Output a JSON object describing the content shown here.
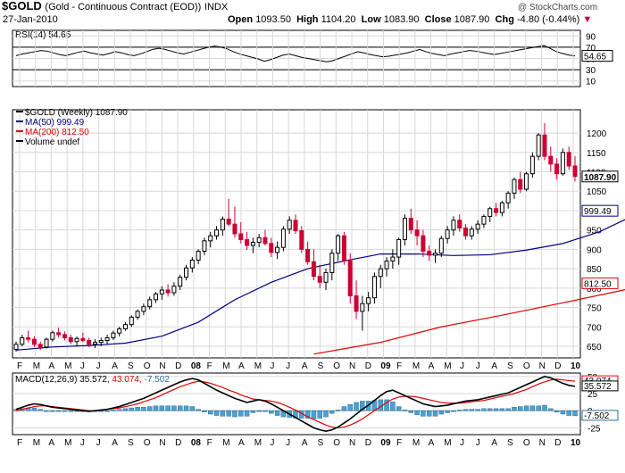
{
  "header": {
    "symbol": "$GOLD",
    "name": "(Gold - Continuous Contract (EOD))",
    "exchange": "INDX",
    "date": "27-Jan-2010",
    "open_label": "Open",
    "open": "1093.50",
    "high_label": "High",
    "high": "1104.20",
    "low_label": "Low",
    "low": "1083.90",
    "close_label": "Close",
    "close": "1087.90",
    "chg_label": "Chg",
    "chg": "-4.80 (-0.44%)",
    "watermark": "@ StockCharts.com"
  },
  "colors": {
    "up": "#000000",
    "down": "#cc0033",
    "ma50": "#000080",
    "ma200": "#e00000",
    "rsi_fill": "#4a7a3a",
    "hist": "#4aa0d0",
    "signal": "#e00000",
    "grid": "#d8d8d8"
  },
  "chart_data": [
    {
      "type": "line",
      "panel": "rsi",
      "legend": "RSI(14) 54.65",
      "current": "54.65",
      "ylim": [
        0,
        100
      ],
      "ticks": [
        10,
        30,
        50,
        70,
        90
      ],
      "overbought": 70,
      "oversold": 30,
      "values": [
        55,
        58,
        60,
        62,
        64,
        63,
        60,
        57,
        55,
        58,
        61,
        63,
        60,
        58,
        56,
        59,
        62,
        60,
        57,
        55,
        58,
        62,
        66,
        68,
        66,
        63,
        60,
        58,
        61,
        64,
        67,
        70,
        72,
        70,
        67,
        62,
        58,
        55,
        52,
        49,
        45,
        48,
        52,
        56,
        58,
        55,
        52,
        50,
        48,
        46,
        44,
        46,
        50,
        54,
        58,
        62,
        60,
        57,
        55,
        53,
        54,
        56,
        58,
        60,
        63,
        66,
        62,
        59,
        57,
        55,
        58,
        60,
        62,
        64,
        63,
        61,
        59,
        57,
        59,
        61,
        63,
        65,
        67,
        69,
        71,
        73,
        68,
        62,
        59,
        56,
        54.65
      ]
    },
    {
      "type": "candlestick",
      "panel": "price",
      "legend": "$GOLD (Weekly) 1087.90",
      "ma50_label": "MA(50) 999.49",
      "ma200_label": "MA(200) 812.50",
      "volume_label": "Volume undef",
      "ma50_value": "999.49",
      "ma200_value": "812.50",
      "close_value": "1087.90",
      "ylim": [
        620,
        1260
      ],
      "ticks": [
        650,
        700,
        750,
        800,
        850,
        900,
        950,
        1000,
        1050,
        1100,
        1150,
        1200
      ],
      "x_labels": [
        "F",
        "M",
        "A",
        "M",
        "J",
        "J",
        "A",
        "S",
        "O",
        "N",
        "D",
        "08",
        "F",
        "M",
        "A",
        "M",
        "J",
        "J",
        "A",
        "S",
        "O",
        "N",
        "D",
        "09",
        "F",
        "M",
        "A",
        "M",
        "J",
        "J",
        "A",
        "S",
        "O",
        "N",
        "D",
        "10"
      ],
      "candles": [
        [
          642,
          662,
          636,
          655
        ],
        [
          655,
          680,
          650,
          672
        ],
        [
          672,
          690,
          660,
          668
        ],
        [
          668,
          676,
          648,
          655
        ],
        [
          655,
          662,
          640,
          648
        ],
        [
          648,
          672,
          644,
          668
        ],
        [
          668,
          690,
          662,
          685
        ],
        [
          685,
          698,
          672,
          680
        ],
        [
          680,
          688,
          665,
          672
        ],
        [
          672,
          680,
          655,
          662
        ],
        [
          662,
          675,
          650,
          670
        ],
        [
          670,
          685,
          660,
          665
        ],
        [
          665,
          672,
          648,
          655
        ],
        [
          655,
          668,
          645,
          660
        ],
        [
          660,
          672,
          650,
          665
        ],
        [
          665,
          680,
          655,
          672
        ],
        [
          672,
          690,
          666,
          684
        ],
        [
          684,
          700,
          675,
          695
        ],
        [
          695,
          712,
          690,
          706
        ],
        [
          706,
          730,
          700,
          725
        ],
        [
          725,
          745,
          718,
          740
        ],
        [
          740,
          760,
          730,
          752
        ],
        [
          752,
          778,
          745,
          770
        ],
        [
          770,
          790,
          762,
          785
        ],
        [
          785,
          805,
          770,
          795
        ],
        [
          795,
          810,
          778,
          788
        ],
        [
          788,
          815,
          780,
          805
        ],
        [
          805,
          835,
          795,
          828
        ],
        [
          828,
          860,
          820,
          852
        ],
        [
          852,
          880,
          840,
          872
        ],
        [
          872,
          900,
          862,
          895
        ],
        [
          895,
          930,
          885,
          922
        ],
        [
          922,
          945,
          905,
          935
        ],
        [
          935,
          960,
          925,
          950
        ],
        [
          950,
          985,
          935,
          978
        ],
        [
          978,
          1030,
          960,
          965
        ],
        [
          965,
          1010,
          930,
          940
        ],
        [
          940,
          970,
          915,
          925
        ],
        [
          925,
          945,
          898,
          910
        ],
        [
          910,
          930,
          890,
          918
        ],
        [
          918,
          940,
          905,
          930
        ],
        [
          930,
          950,
          910,
          915
        ],
        [
          915,
          930,
          880,
          892
        ],
        [
          892,
          920,
          875,
          905
        ],
        [
          905,
          960,
          895,
          952
        ],
        [
          952,
          985,
          940,
          975
        ],
        [
          975,
          990,
          940,
          948
        ],
        [
          948,
          960,
          890,
          900
        ],
        [
          900,
          920,
          860,
          868
        ],
        [
          868,
          900,
          820,
          830
        ],
        [
          830,
          860,
          800,
          815
        ],
        [
          815,
          850,
          795,
          840
        ],
        [
          840,
          900,
          820,
          890
        ],
        [
          890,
          940,
          870,
          935
        ],
        [
          935,
          945,
          860,
          870
        ],
        [
          870,
          890,
          760,
          780
        ],
        [
          780,
          820,
          720,
          740
        ],
        [
          740,
          780,
          690,
          760
        ],
        [
          760,
          790,
          740,
          775
        ],
        [
          775,
          840,
          760,
          830
        ],
        [
          830,
          860,
          800,
          850
        ],
        [
          850,
          880,
          830,
          870
        ],
        [
          870,
          900,
          850,
          880
        ],
        [
          880,
          930,
          860,
          925
        ],
        [
          925,
          990,
          910,
          980
        ],
        [
          980,
          1005,
          940,
          950
        ],
        [
          950,
          975,
          910,
          935
        ],
        [
          935,
          950,
          880,
          895
        ],
        [
          895,
          910,
          870,
          885
        ],
        [
          885,
          900,
          865,
          890
        ],
        [
          890,
          935,
          880,
          928
        ],
        [
          928,
          960,
          915,
          950
        ],
        [
          950,
          985,
          935,
          975
        ],
        [
          975,
          990,
          945,
          955
        ],
        [
          955,
          965,
          925,
          935
        ],
        [
          935,
          960,
          925,
          952
        ],
        [
          952,
          975,
          940,
          965
        ],
        [
          965,
          990,
          955,
          985
        ],
        [
          985,
          1010,
          970,
          1005
        ],
        [
          1005,
          1020,
          985,
          995
        ],
        [
          995,
          1025,
          985,
          1020
        ],
        [
          1020,
          1050,
          1005,
          1045
        ],
        [
          1045,
          1085,
          1030,
          1080
        ],
        [
          1080,
          1100,
          1045,
          1055
        ],
        [
          1055,
          1100,
          1050,
          1095
        ],
        [
          1095,
          1150,
          1085,
          1140
        ],
        [
          1140,
          1200,
          1130,
          1195
        ],
        [
          1195,
          1226,
          1130,
          1140
        ],
        [
          1140,
          1165,
          1100,
          1120
        ],
        [
          1120,
          1135,
          1080,
          1095
        ],
        [
          1095,
          1160,
          1090,
          1150
        ],
        [
          1150,
          1165,
          1105,
          1115
        ],
        [
          1115,
          1140,
          1075,
          1088
        ]
      ],
      "ma50": [
        {
          "i": 0,
          "v": 640
        },
        {
          "i": 6,
          "v": 648
        },
        {
          "i": 12,
          "v": 652
        },
        {
          "i": 18,
          "v": 658
        },
        {
          "i": 24,
          "v": 676
        },
        {
          "i": 30,
          "v": 712
        },
        {
          "i": 36,
          "v": 770
        },
        {
          "i": 42,
          "v": 815
        },
        {
          "i": 48,
          "v": 850
        },
        {
          "i": 54,
          "v": 870
        },
        {
          "i": 60,
          "v": 888
        },
        {
          "i": 66,
          "v": 888
        },
        {
          "i": 72,
          "v": 884
        },
        {
          "i": 78,
          "v": 886
        },
        {
          "i": 84,
          "v": 898
        },
        {
          "i": 90,
          "v": 915
        },
        {
          "i": 96,
          "v": 945
        },
        {
          "i": 100,
          "v": 975
        },
        {
          "i": 104,
          "v": 999.49
        }
      ],
      "ma200": [
        {
          "i": 49,
          "v": 630
        },
        {
          "i": 60,
          "v": 660
        },
        {
          "i": 70,
          "v": 700
        },
        {
          "i": 80,
          "v": 730
        },
        {
          "i": 90,
          "v": 762
        },
        {
          "i": 100,
          "v": 795
        },
        {
          "i": 104,
          "v": 812.5
        }
      ]
    },
    {
      "type": "line",
      "panel": "macd",
      "legend_macd": "MACD(12,26,9)",
      "macd_value": "35.572",
      "signal_value": "43.074",
      "hist_value": "-7.502",
      "ylim": [
        -35,
        55
      ],
      "ticks": [
        -25,
        0,
        25,
        50
      ],
      "macd": [
        2,
        5,
        8,
        10,
        9,
        7,
        5,
        4,
        3,
        2,
        1,
        0,
        -1,
        0,
        1,
        2,
        4,
        6,
        9,
        12,
        15,
        18,
        22,
        26,
        30,
        34,
        38,
        42,
        45,
        47,
        45,
        40,
        35,
        30,
        26,
        22,
        18,
        15,
        12,
        14,
        16,
        14,
        10,
        5,
        0,
        -5,
        -10,
        -15,
        -20,
        -25,
        -28,
        -30,
        -28,
        -24,
        -18,
        -12,
        -5,
        2,
        8,
        15,
        22,
        28,
        30,
        26,
        22,
        18,
        14,
        10,
        8,
        6,
        7,
        8,
        10,
        12,
        14,
        15,
        16,
        18,
        20,
        22,
        24,
        26,
        30,
        34,
        38,
        42,
        46,
        50,
        48,
        44,
        40,
        37,
        35.572
      ],
      "signal": [
        0,
        2,
        4,
        6,
        7,
        7,
        6,
        5,
        4,
        3,
        2,
        1,
        0,
        0,
        1,
        2,
        3,
        4,
        6,
        8,
        10,
        13,
        16,
        19,
        23,
        27,
        31,
        35,
        38,
        41,
        43,
        42,
        40,
        37,
        34,
        30,
        27,
        23,
        20,
        17,
        16,
        15,
        14,
        12,
        9,
        5,
        1,
        -4,
        -9,
        -13,
        -17,
        -21,
        -24,
        -25,
        -24,
        -21,
        -17,
        -12,
        -6,
        0,
        6,
        12,
        17,
        20,
        21,
        21,
        20,
        18,
        16,
        14,
        12,
        11,
        11,
        11,
        12,
        13,
        14,
        15,
        17,
        19,
        21,
        23,
        25,
        28,
        31,
        35,
        39,
        42,
        45,
        46,
        45,
        44,
        43.074
      ],
      "hist": [
        2,
        3,
        4,
        4,
        2,
        0,
        -1,
        -1,
        -1,
        -1,
        -1,
        -1,
        -1,
        0,
        0,
        0,
        1,
        2,
        3,
        4,
        5,
        5,
        6,
        7,
        7,
        7,
        7,
        7,
        7,
        6,
        2,
        -2,
        -5,
        -7,
        -8,
        -8,
        -9,
        -8,
        -8,
        -3,
        0,
        -1,
        -4,
        -7,
        -9,
        -10,
        -11,
        -11,
        -11,
        -12,
        -11,
        -9,
        -4,
        1,
        6,
        9,
        12,
        14,
        14,
        15,
        16,
        16,
        13,
        6,
        1,
        -3,
        -6,
        -8,
        -8,
        -8,
        -5,
        -3,
        -1,
        1,
        2,
        2,
        2,
        3,
        3,
        3,
        3,
        3,
        5,
        6,
        7,
        7,
        7,
        8,
        3,
        -2,
        -5,
        -7,
        -7.502
      ],
      "x_labels": [
        "F",
        "M",
        "A",
        "M",
        "J",
        "J",
        "A",
        "S",
        "O",
        "N",
        "D",
        "08",
        "F",
        "M",
        "A",
        "M",
        "J",
        "J",
        "A",
        "S",
        "O",
        "N",
        "D",
        "09",
        "F",
        "M",
        "A",
        "M",
        "J",
        "J",
        "A",
        "S",
        "O",
        "N",
        "D",
        "10"
      ]
    }
  ]
}
